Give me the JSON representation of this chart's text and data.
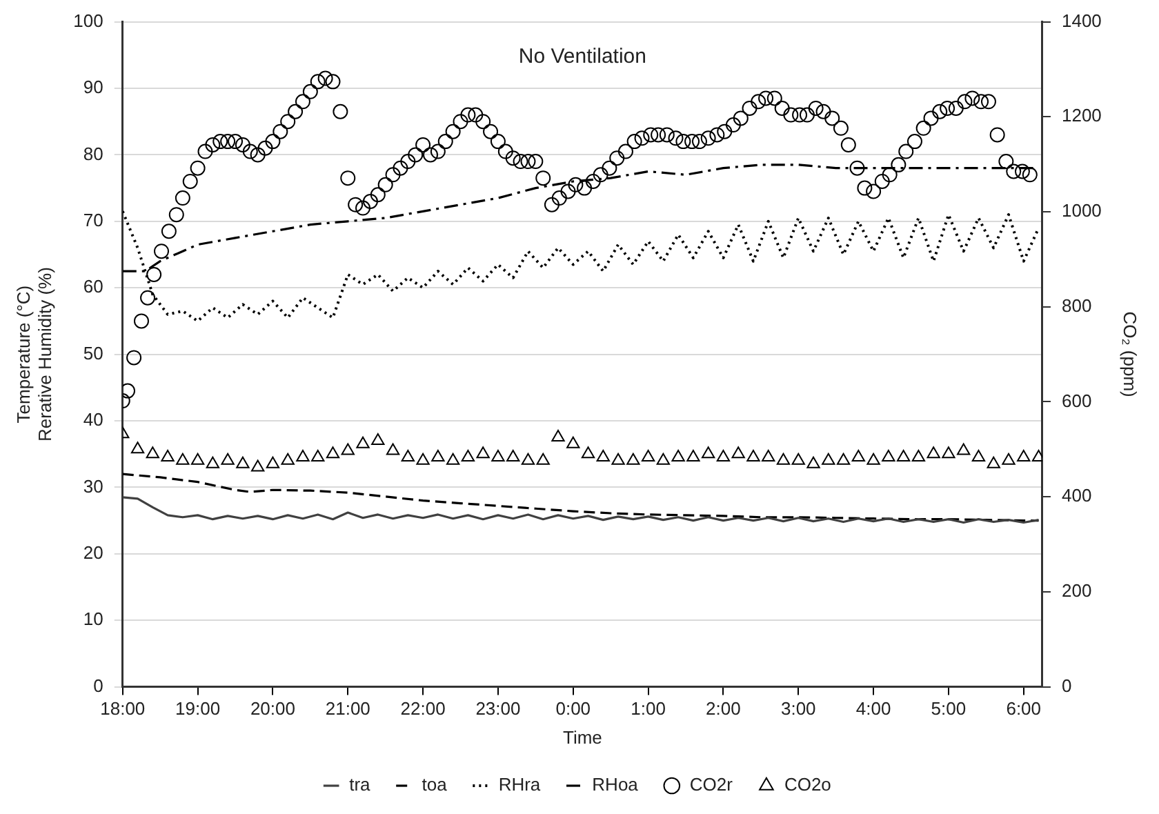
{
  "chart_data": {
    "type": "line",
    "annotations": [
      "No Ventilation"
    ],
    "xlabel": "Time",
    "ylabel": "Temperature (°C)\nRerative Humidity (%)",
    "y2label": "CO₂ (ppm)",
    "xlim": [
      "2000-01-01T18:00",
      "2000-01-02T06:15"
    ],
    "xticks": [
      {
        "value": "2000-01-01T18:00",
        "label": "18:00"
      },
      {
        "value": "2000-01-01T19:00",
        "label": "19:00"
      },
      {
        "value": "2000-01-01T20:00",
        "label": "20:00"
      },
      {
        "value": "2000-01-01T21:00",
        "label": "21:00"
      },
      {
        "value": "2000-01-01T22:00",
        "label": "22:00"
      },
      {
        "value": "2000-01-01T23:00",
        "label": "23:00"
      },
      {
        "value": "2000-01-02T00:00",
        "label": "0:00"
      },
      {
        "value": "2000-01-02T01:00",
        "label": "1:00"
      },
      {
        "value": "2000-01-02T02:00",
        "label": "2:00"
      },
      {
        "value": "2000-01-02T03:00",
        "label": "3:00"
      },
      {
        "value": "2000-01-02T04:00",
        "label": "4:00"
      },
      {
        "value": "2000-01-02T05:00",
        "label": "5:00"
      },
      {
        "value": "2000-01-02T06:00",
        "label": "6:00"
      }
    ],
    "ylim": [
      0,
      100
    ],
    "yticks": [
      0,
      10,
      20,
      30,
      40,
      50,
      60,
      70,
      80,
      90,
      100
    ],
    "y2lim": [
      0,
      1400
    ],
    "y2ticks": [
      0,
      200,
      400,
      600,
      800,
      1000,
      1200,
      1400
    ],
    "grid": "y",
    "legend": "bottom",
    "x": [
      "2000-01-01T18:00",
      "2000-01-01T18:12",
      "2000-01-01T18:24",
      "2000-01-01T18:36",
      "2000-01-01T18:48",
      "2000-01-01T19:00",
      "2000-01-01T19:12",
      "2000-01-01T19:24",
      "2000-01-01T19:36",
      "2000-01-01T19:48",
      "2000-01-01T20:00",
      "2000-01-01T20:12",
      "2000-01-01T20:24",
      "2000-01-01T20:36",
      "2000-01-01T20:48",
      "2000-01-01T21:00",
      "2000-01-01T21:12",
      "2000-01-01T21:24",
      "2000-01-01T21:36",
      "2000-01-01T21:48",
      "2000-01-01T22:00",
      "2000-01-01T22:12",
      "2000-01-01T22:24",
      "2000-01-01T22:36",
      "2000-01-01T22:48",
      "2000-01-01T23:00",
      "2000-01-01T23:12",
      "2000-01-01T23:24",
      "2000-01-01T23:36",
      "2000-01-01T23:48",
      "2000-01-02T00:00",
      "2000-01-02T00:12",
      "2000-01-02T00:24",
      "2000-01-02T00:36",
      "2000-01-02T00:48",
      "2000-01-02T01:00",
      "2000-01-02T01:12",
      "2000-01-02T01:24",
      "2000-01-02T01:36",
      "2000-01-02T01:48",
      "2000-01-02T02:00",
      "2000-01-02T02:12",
      "2000-01-02T02:24",
      "2000-01-02T02:36",
      "2000-01-02T02:48",
      "2000-01-02T03:00",
      "2000-01-02T03:12",
      "2000-01-02T03:24",
      "2000-01-02T03:36",
      "2000-01-02T03:48",
      "2000-01-02T04:00",
      "2000-01-02T04:12",
      "2000-01-02T04:24",
      "2000-01-02T04:36",
      "2000-01-02T04:48",
      "2000-01-02T05:00",
      "2000-01-02T05:12",
      "2000-01-02T05:24",
      "2000-01-02T05:36",
      "2000-01-02T05:48",
      "2000-01-02T06:00",
      "2000-01-02T06:12"
    ],
    "series": [
      {
        "name": "tra",
        "line_style": "solid",
        "color": "#404040",
        "values": [
          28.5,
          28.3,
          27,
          25.8,
          25.5,
          25.8,
          25.2,
          25.7,
          25.3,
          25.7,
          25.2,
          25.8,
          25.3,
          25.9,
          25.2,
          26.2,
          25.4,
          25.9,
          25.3,
          25.8,
          25.4,
          25.9,
          25.3,
          25.8,
          25.2,
          25.8,
          25.3,
          25.9,
          25.2,
          25.8,
          25.3,
          25.7,
          25.1,
          25.6,
          25.2,
          25.6,
          25.1,
          25.5,
          25,
          25.5,
          25,
          25.4,
          25,
          25.4,
          24.9,
          25.4,
          24.9,
          25.3,
          24.8,
          25.3,
          24.9,
          25.3,
          24.8,
          25.2,
          24.8,
          25.2,
          24.7,
          25.2,
          24.8,
          25.1,
          24.7,
          25.1
        ]
      },
      {
        "name": "toa",
        "line_style": "dashed",
        "color": "#000000",
        "x": [
          "2000-01-01T18:00",
          "2000-01-01T18:30",
          "2000-01-01T19:00",
          "2000-01-01T19:30",
          "2000-01-01T19:42",
          "2000-01-01T20:00",
          "2000-01-01T20:30",
          "2000-01-01T21:00",
          "2000-01-01T21:30",
          "2000-01-01T22:00",
          "2000-01-01T22:30",
          "2000-01-01T23:00",
          "2000-01-01T23:30",
          "2000-01-02T00:00",
          "2000-01-02T00:30",
          "2000-01-02T01:00",
          "2000-01-02T01:30",
          "2000-01-02T02:00",
          "2000-01-02T02:30",
          "2000-01-02T03:00",
          "2000-01-02T03:30",
          "2000-01-02T04:00",
          "2000-01-02T04:30",
          "2000-01-02T05:00",
          "2000-01-02T05:30",
          "2000-01-02T06:00",
          "2000-01-02T06:12"
        ],
        "values": [
          32,
          31.5,
          30.8,
          29.6,
          29.3,
          29.6,
          29.5,
          29.2,
          28.6,
          28,
          27.6,
          27.2,
          26.8,
          26.4,
          26.1,
          25.9,
          25.8,
          25.7,
          25.5,
          25.5,
          25.4,
          25.3,
          25.2,
          25.2,
          25.1,
          25,
          25
        ]
      },
      {
        "name": "RHra",
        "line_style": "dotted",
        "color": "#000000",
        "values": [
          71.5,
          66,
          59,
          56,
          56.5,
          55,
          57,
          55.5,
          57.5,
          56,
          58,
          55.5,
          58.5,
          57,
          55.5,
          62,
          60.5,
          62,
          59.5,
          61.5,
          60,
          62.5,
          60.5,
          63,
          61,
          63.5,
          61.5,
          65.5,
          63,
          66,
          63.5,
          65.5,
          62.5,
          66.5,
          63.5,
          67,
          64,
          68,
          64.5,
          68.5,
          64.5,
          69.5,
          64,
          70,
          64.5,
          70.5,
          65.5,
          70.5,
          65,
          70,
          65.5,
          70.5,
          64.5,
          70.5,
          64,
          71,
          65.5,
          70.5,
          66,
          71,
          64,
          69
        ]
      },
      {
        "name": "RHoa",
        "line_style": "dashdot",
        "color": "#000000",
        "x": [
          "2000-01-01T18:00",
          "2000-01-01T18:18",
          "2000-01-01T18:30",
          "2000-01-01T18:48",
          "2000-01-01T19:00",
          "2000-01-01T19:30",
          "2000-01-01T20:00",
          "2000-01-01T20:30",
          "2000-01-01T21:00",
          "2000-01-01T21:30",
          "2000-01-01T22:00",
          "2000-01-01T22:30",
          "2000-01-01T23:00",
          "2000-01-01T23:30",
          "2000-01-02T00:00",
          "2000-01-02T00:30",
          "2000-01-02T01:00",
          "2000-01-02T01:30",
          "2000-01-02T02:00",
          "2000-01-02T02:30",
          "2000-01-02T03:00",
          "2000-01-02T03:30",
          "2000-01-02T04:00",
          "2000-01-02T04:30",
          "2000-01-02T05:00",
          "2000-01-02T05:30",
          "2000-01-02T06:00",
          "2000-01-02T06:12"
        ],
        "values": [
          62.5,
          62.5,
          64,
          65.5,
          66.5,
          67.5,
          68.5,
          69.5,
          70,
          70.5,
          71.5,
          72.5,
          73.5,
          75,
          76,
          76.5,
          77.5,
          77,
          78,
          78.5,
          78.5,
          78,
          78,
          78,
          78,
          78,
          78,
          78
        ]
      },
      {
        "name": "CO2r",
        "type": "scatter",
        "marker": "circle",
        "axis": "y2",
        "color": "#000000",
        "x": [
          "2000-01-01T18:00",
          "2000-01-01T18:04",
          "2000-01-01T18:09",
          "2000-01-01T18:15",
          "2000-01-01T18:20",
          "2000-01-01T18:25",
          "2000-01-01T18:31",
          "2000-01-01T18:37",
          "2000-01-01T18:43",
          "2000-01-01T18:48",
          "2000-01-01T18:54",
          "2000-01-01T19:00",
          "2000-01-01T19:06",
          "2000-01-01T19:12",
          "2000-01-01T19:18",
          "2000-01-01T19:24",
          "2000-01-01T19:30",
          "2000-01-01T19:36",
          "2000-01-01T19:42",
          "2000-01-01T19:48",
          "2000-01-01T19:54",
          "2000-01-01T20:00",
          "2000-01-01T20:06",
          "2000-01-01T20:12",
          "2000-01-01T20:18",
          "2000-01-01T20:24",
          "2000-01-01T20:30",
          "2000-01-01T20:36",
          "2000-01-01T20:42",
          "2000-01-01T20:48",
          "2000-01-01T20:54",
          "2000-01-01T21:00",
          "2000-01-01T21:06",
          "2000-01-01T21:12",
          "2000-01-01T21:18",
          "2000-01-01T21:24",
          "2000-01-01T21:30",
          "2000-01-01T21:36",
          "2000-01-01T21:42",
          "2000-01-01T21:48",
          "2000-01-01T21:54",
          "2000-01-01T22:00",
          "2000-01-01T22:06",
          "2000-01-01T22:12",
          "2000-01-01T22:18",
          "2000-01-01T22:24",
          "2000-01-01T22:30",
          "2000-01-01T22:36",
          "2000-01-01T22:42",
          "2000-01-01T22:48",
          "2000-01-01T22:54",
          "2000-01-01T23:00",
          "2000-01-01T23:06",
          "2000-01-01T23:12",
          "2000-01-01T23:18",
          "2000-01-01T23:24",
          "2000-01-01T23:30",
          "2000-01-01T23:36",
          "2000-01-01T23:43",
          "2000-01-01T23:49",
          "2000-01-01T23:56",
          "2000-01-02T00:02",
          "2000-01-02T00:09",
          "2000-01-02T00:16",
          "2000-01-02T00:22",
          "2000-01-02T00:29",
          "2000-01-02T00:35",
          "2000-01-02T00:42",
          "2000-01-02T00:49",
          "2000-01-02T00:55",
          "2000-01-02T01:02",
          "2000-01-02T01:08",
          "2000-01-02T01:15",
          "2000-01-02T01:22",
          "2000-01-02T01:28",
          "2000-01-02T01:35",
          "2000-01-02T01:41",
          "2000-01-02T01:48",
          "2000-01-02T01:55",
          "2000-01-02T02:01",
          "2000-01-02T02:08",
          "2000-01-02T02:14",
          "2000-01-02T02:21",
          "2000-01-02T02:28",
          "2000-01-02T02:34",
          "2000-01-02T02:41",
          "2000-01-02T02:47",
          "2000-01-02T02:54",
          "2000-01-02T03:01",
          "2000-01-02T03:07",
          "2000-01-02T03:14",
          "2000-01-02T03:20",
          "2000-01-02T03:27",
          "2000-01-02T03:34",
          "2000-01-02T03:40",
          "2000-01-02T03:47",
          "2000-01-02T03:53",
          "2000-01-02T04:00",
          "2000-01-02T04:07",
          "2000-01-02T04:13",
          "2000-01-02T04:20",
          "2000-01-02T04:26",
          "2000-01-02T04:33",
          "2000-01-02T04:40",
          "2000-01-02T04:46",
          "2000-01-02T04:53",
          "2000-01-02T04:59",
          "2000-01-02T05:06",
          "2000-01-02T05:13",
          "2000-01-02T05:19",
          "2000-01-02T05:26",
          "2000-01-02T05:32",
          "2000-01-02T05:39",
          "2000-01-02T05:46",
          "2000-01-02T05:52",
          "2000-01-02T05:59",
          "2000-01-02T06:05"
        ],
        "values": [
          602,
          623,
          693,
          770,
          819,
          868,
          917,
          959,
          994,
          1029,
          1064,
          1092,
          1127,
          1141,
          1148,
          1148,
          1148,
          1141,
          1127,
          1120,
          1134,
          1148,
          1169,
          1190,
          1211,
          1232,
          1253,
          1274,
          1281,
          1274,
          1211,
          1071,
          1015,
          1008,
          1022,
          1036,
          1057,
          1078,
          1092,
          1106,
          1120,
          1141,
          1120,
          1127,
          1148,
          1169,
          1190,
          1204,
          1204,
          1190,
          1169,
          1148,
          1127,
          1113,
          1106,
          1106,
          1106,
          1071,
          1015,
          1029,
          1043,
          1057,
          1050,
          1064,
          1078,
          1092,
          1113,
          1127,
          1148,
          1155,
          1162,
          1162,
          1162,
          1155,
          1148,
          1148,
          1148,
          1155,
          1162,
          1169,
          1183,
          1197,
          1218,
          1232,
          1239,
          1239,
          1218,
          1204,
          1204,
          1204,
          1218,
          1211,
          1197,
          1176,
          1141,
          1092,
          1050,
          1043,
          1064,
          1078,
          1099,
          1127,
          1148,
          1176,
          1197,
          1211,
          1218,
          1218,
          1232,
          1239,
          1232,
          1232,
          1162,
          1106,
          1085,
          1085,
          1078
        ]
      },
      {
        "name": "CO2o",
        "type": "scatter",
        "marker": "triangle",
        "axis": "y2",
        "color": "#000000",
        "values": [
          532,
          500,
          490,
          483,
          476,
          476,
          469,
          476,
          469,
          462,
          469,
          476,
          483,
          483,
          490,
          497,
          511,
          518,
          497,
          483,
          476,
          483,
          476,
          483,
          490,
          483,
          483,
          476,
          476,
          525,
          511,
          490,
          483,
          476,
          476,
          483,
          476,
          483,
          483,
          490,
          483,
          490,
          483,
          483,
          476,
          476,
          469,
          476,
          476,
          483,
          476,
          483,
          483,
          483,
          490,
          490,
          497,
          483,
          469,
          476,
          483,
          483
        ]
      }
    ]
  }
}
